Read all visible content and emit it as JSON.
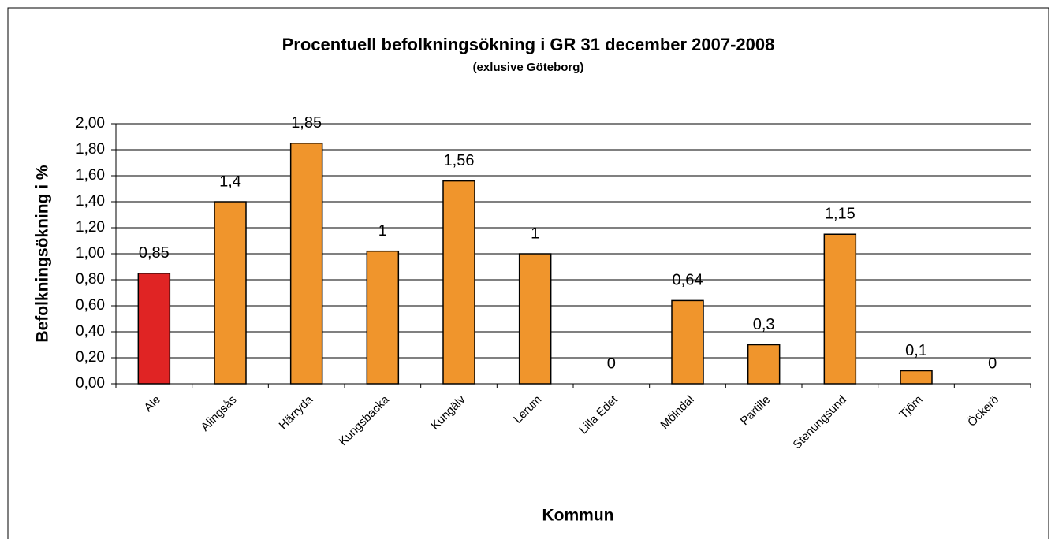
{
  "chart_data": {
    "type": "bar",
    "title": "Procentuell befolkningsökning i GR 31 december 2007-2008",
    "subtitle": "(exlusive Göteborg)",
    "x_label": "Kommun",
    "y_label": "Befolkningsökning i %",
    "categories": [
      "Ale",
      "Alingsås",
      "Härryda",
      "Kungsbacka",
      "Kungälv",
      "Lerum",
      "Lilla Edet",
      "Mölndal",
      "Partille",
      "Stenungsund",
      "Tjörn",
      "Öckerö"
    ],
    "values": [
      0.85,
      1.4,
      1.85,
      1.02,
      1.56,
      1,
      0,
      0.64,
      0.3,
      1.15,
      0.1,
      0
    ],
    "value_labels": [
      "0,85",
      "1,4",
      "1,85",
      "1",
      "1,56",
      "1",
      "0",
      "0,64",
      "0,3",
      "1,15",
      "0,1",
      "0"
    ],
    "colors": [
      "#e02424",
      "#f0952c",
      "#f0952c",
      "#f0952c",
      "#f0952c",
      "#f0952c",
      "#f0952c",
      "#f0952c",
      "#f0952c",
      "#f0952c",
      "#f0952c",
      "#f0952c"
    ],
    "ylim": [
      0,
      2
    ],
    "yticks": [
      {
        "value": 0,
        "label": "0,00"
      },
      {
        "value": 0.2,
        "label": "0,20"
      },
      {
        "value": 0.4,
        "label": "0,40"
      },
      {
        "value": 0.6,
        "label": "0,60"
      },
      {
        "value": 0.8,
        "label": "0,80"
      },
      {
        "value": 1,
        "label": "1,00"
      },
      {
        "value": 1.2,
        "label": "1,20"
      },
      {
        "value": 1.4,
        "label": "1,40"
      },
      {
        "value": 1.6,
        "label": "1,60"
      },
      {
        "value": 1.8,
        "label": "1,80"
      },
      {
        "value": 2,
        "label": "2,00"
      }
    ],
    "grid": true
  }
}
